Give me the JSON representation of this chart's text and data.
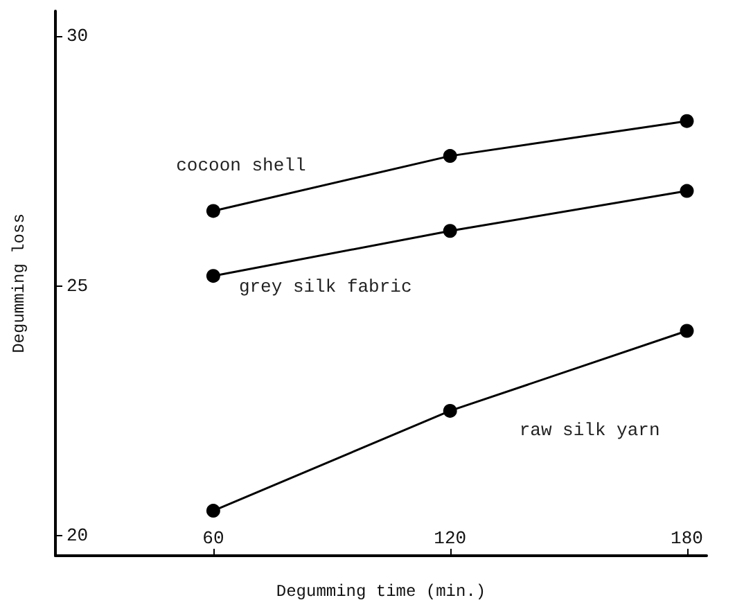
{
  "chart_data": {
    "type": "line",
    "xlabel": "Degumming time (min.)",
    "ylabel": "Degumming loss",
    "x": [
      60,
      120,
      180
    ],
    "series": [
      {
        "name": "cocoon shell",
        "color": "#000000",
        "values": [
          26.5,
          27.6,
          28.3
        ]
      },
      {
        "name": "grey silk fabric",
        "color": "#000000",
        "values": [
          25.2,
          26.1,
          26.9
        ]
      },
      {
        "name": "raw silk yarn",
        "color": "#000000",
        "values": [
          20.5,
          22.5,
          24.1
        ]
      }
    ],
    "xlim": [
      20,
      185
    ],
    "xticks": [
      60,
      120,
      180
    ],
    "ylim": [
      19.6,
      30.5
    ],
    "yticks": [
      20,
      25,
      30
    ],
    "grid": false,
    "legend": false,
    "marker": "circle",
    "line_style": "solid"
  }
}
